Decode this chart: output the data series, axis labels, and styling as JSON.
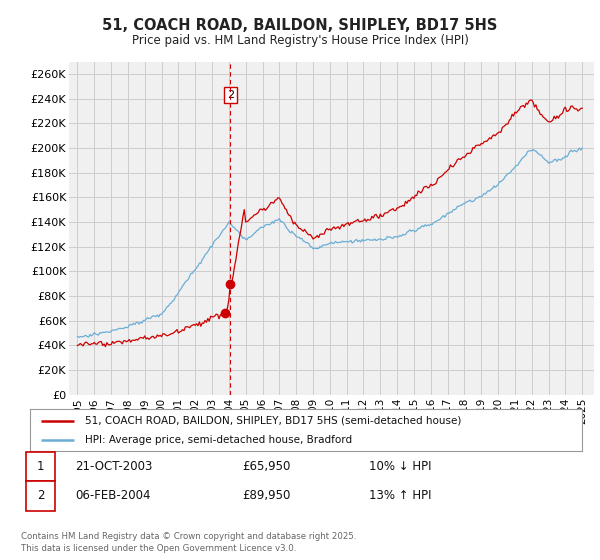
{
  "title": "51, COACH ROAD, BAILDON, SHIPLEY, BD17 5HS",
  "subtitle": "Price paid vs. HM Land Registry's House Price Index (HPI)",
  "ylabel_ticks": [
    "£0",
    "£20K",
    "£40K",
    "£60K",
    "£80K",
    "£100K",
    "£120K",
    "£140K",
    "£160K",
    "£180K",
    "£200K",
    "£220K",
    "£240K",
    "£260K"
  ],
  "ytick_values": [
    0,
    20000,
    40000,
    60000,
    80000,
    100000,
    120000,
    140000,
    160000,
    180000,
    200000,
    220000,
    240000,
    260000
  ],
  "ylim": [
    0,
    270000
  ],
  "hpi_color": "#6baed6",
  "price_color": "#cc0000",
  "vline_color": "#cc0000",
  "grid_color": "#cccccc",
  "background_color": "#ffffff",
  "plot_bg_color": "#f0f0f0",
  "legend_label_red": "51, COACH ROAD, BAILDON, SHIPLEY, BD17 5HS (semi-detached house)",
  "legend_label_blue": "HPI: Average price, semi-detached house, Bradford",
  "transaction1_date": "21-OCT-2003",
  "transaction1_price": "£65,950",
  "transaction1_hpi": "10% ↓ HPI",
  "transaction2_date": "06-FEB-2004",
  "transaction2_price": "£89,950",
  "transaction2_hpi": "13% ↑ HPI",
  "footer": "Contains HM Land Registry data © Crown copyright and database right 2025.\nThis data is licensed under the Open Government Licence v3.0.",
  "transaction1_x": 2003.8,
  "transaction1_y": 65950,
  "transaction2_x": 2004.09,
  "transaction2_y": 89950,
  "vline_x": 2004.09,
  "xlim_start": 1994.5,
  "xlim_end": 2025.7
}
